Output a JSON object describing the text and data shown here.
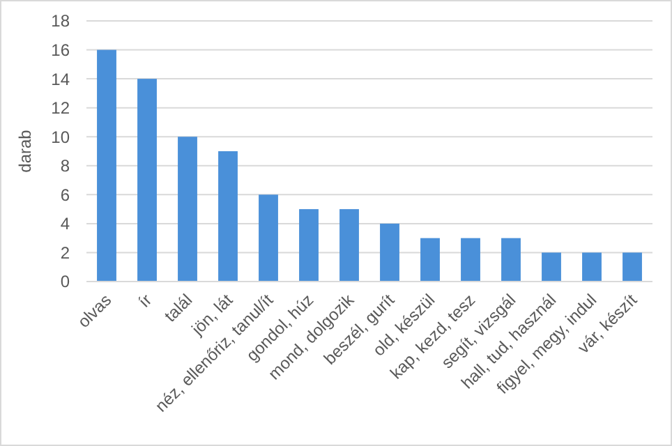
{
  "chart_data": {
    "type": "bar",
    "ylabel": "darab",
    "categories": [
      "olvas",
      "ír",
      "talál",
      "jön, lát",
      "néz, ellenőriz, tanul/ít",
      "gondol, húz",
      "mond, dolgozik",
      "beszél, gurít",
      "old, készül",
      "kap, kezd, tesz",
      "segít, vizsgál",
      "hall, tud, használ",
      "figyel, megy, indul",
      "vár, készít"
    ],
    "values": [
      16,
      14,
      10,
      9,
      6,
      5,
      5,
      4,
      3,
      3,
      3,
      2,
      2,
      2
    ],
    "color": "#4a90d9",
    "ylim": [
      0,
      18
    ],
    "yticks": [
      0,
      2,
      4,
      6,
      8,
      10,
      12,
      14,
      16,
      18
    ],
    "grid": "y"
  }
}
